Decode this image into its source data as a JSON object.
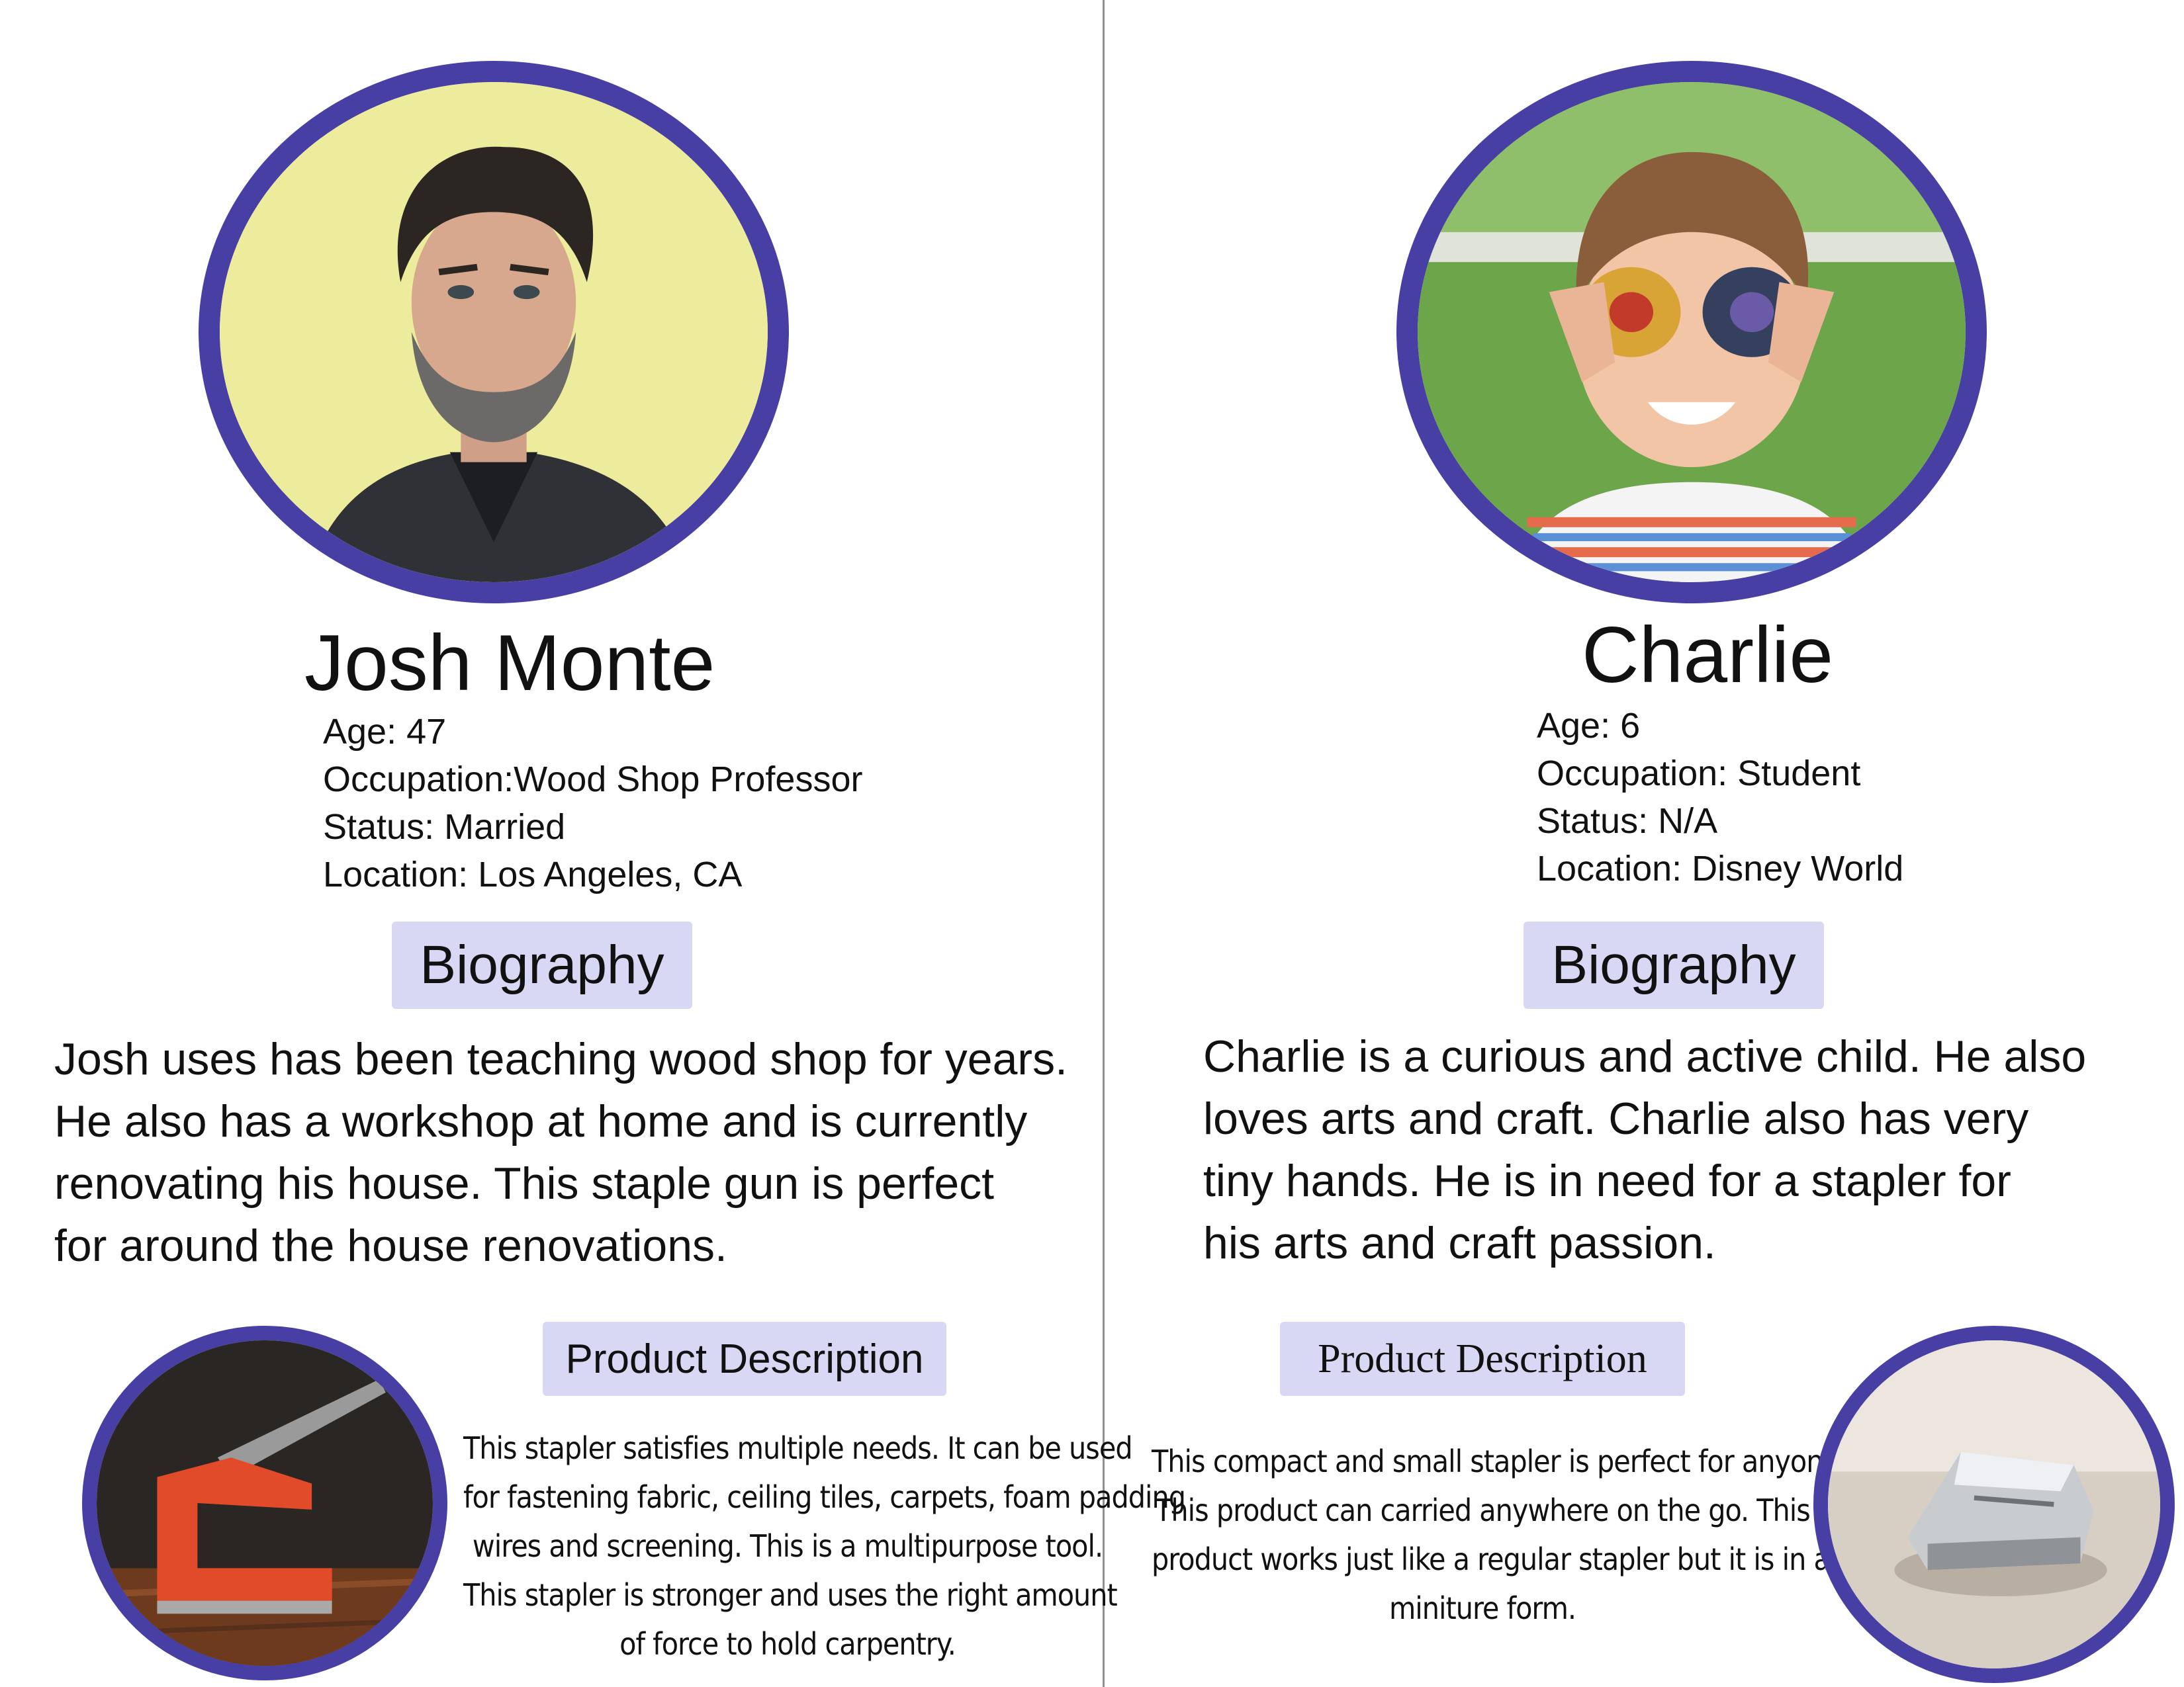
{
  "personas": [
    {
      "name": "Josh Monte",
      "facts": [
        "Age: 47",
        "Occupation:Wood Shop Professor",
        "Status: Married",
        "Location: Los Angeles, CA"
      ],
      "biography_label": "Biography",
      "biography_lines": [
        "Josh uses has been teaching wood shop for years.",
        "He also has a workshop at home and is currently",
        "renovating his house. This staple gun is perfect",
        "for around the house renovations."
      ],
      "product_label": "Product Description",
      "product_lines": [
        "This stapler satisfies multiple needs. It can be used",
        "for fastening fabric, ceiling tiles, carpets, foam padding",
        "wires and screening. This is a multipurpose tool.",
        "This stapler is stronger and uses the right amount",
        "of force to hold carpentry."
      ],
      "avatar_icon": "man-portrait-photo",
      "product_icon": "red-staple-gun-photo"
    },
    {
      "name": "Charlie",
      "facts": [
        "Age: 6",
        "Occupation: Student",
        "Status: N/A",
        "Location: Disney World"
      ],
      "biography_label": "Biography",
      "biography_lines": [
        "Charlie is a curious and active child. He also",
        "loves arts and craft. Charlie also has very",
        "tiny hands. He is in need for a stapler for",
        "his arts and craft passion."
      ],
      "product_label": "Product Description",
      "product_lines": [
        "This compact and small stapler is perfect for anyone.",
        "This product can carried anywhere on the go. This",
        "product works just like a regular stapler but it is in a",
        "miniture form."
      ],
      "avatar_icon": "boy-portrait-photo",
      "product_icon": "mini-stapler-photo"
    }
  ],
  "colors": {
    "ring": "#473fa4",
    "pill": "#d9d8f4",
    "divider": "#8f8f8f"
  }
}
